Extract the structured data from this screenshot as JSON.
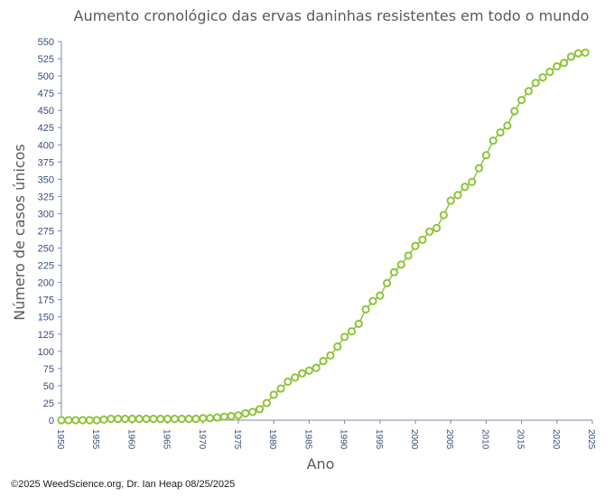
{
  "colors": {
    "series": "#8fc43b",
    "axis": "#7f8aa8",
    "tick_text": "#3a4f7a",
    "title_text": "#595959"
  },
  "credit": "©2025 WeedScience.org, Dr. Ian Heap 08/25/2025",
  "chart_data": {
    "type": "line",
    "title": "Aumento cronológico das ervas daninhas resistentes em todo o mundo",
    "xlabel": "Ano",
    "ylabel": "Número de casos únicos",
    "xlim": [
      1950,
      2025
    ],
    "ylim": [
      0,
      550
    ],
    "xticks": [
      "1950",
      "1955",
      "1960",
      "1965",
      "1970",
      "1975",
      "1980",
      "1985",
      "1990",
      "1995",
      "2000",
      "2005",
      "2010",
      "2015",
      "2020",
      "2025"
    ],
    "yticks": [
      "0",
      "25",
      "50",
      "75",
      "100",
      "125",
      "150",
      "175",
      "200",
      "225",
      "250",
      "275",
      "300",
      "325",
      "350",
      "375",
      "400",
      "425",
      "450",
      "475",
      "500",
      "525",
      "550"
    ],
    "grid": false,
    "legend": "none",
    "series": [
      {
        "x": [
          1950,
          1951,
          1952,
          1953,
          1954,
          1955,
          1956,
          1957,
          1958,
          1959,
          1960,
          1961,
          1962,
          1963,
          1964,
          1965,
          1966,
          1967,
          1968,
          1969,
          1970,
          1971,
          1972,
          1973,
          1974,
          1975,
          1976,
          1977,
          1978,
          1979,
          1980,
          1981,
          1982,
          1983,
          1984,
          1985,
          1986,
          1987,
          1988,
          1989,
          1990,
          1991,
          1992,
          1993,
          1994,
          1995,
          1996,
          1997,
          1998,
          1999,
          2000,
          2001,
          2002,
          2003,
          2004,
          2005,
          2006,
          2007,
          2008,
          2009,
          2010,
          2011,
          2012,
          2013,
          2014,
          2015,
          2016,
          2017,
          2018,
          2019,
          2020,
          2021,
          2022,
          2023,
          2024
        ],
        "y": [
          0,
          0,
          0,
          0,
          0,
          0,
          1,
          2,
          2,
          2,
          2,
          2,
          2,
          2,
          2,
          2,
          2,
          2,
          2,
          2,
          3,
          3,
          4,
          5,
          6,
          7,
          10,
          12,
          16,
          25,
          37,
          46,
          56,
          62,
          68,
          72,
          76,
          86,
          94,
          107,
          121,
          129,
          140,
          161,
          173,
          181,
          199,
          215,
          226,
          239,
          253,
          262,
          274,
          279,
          298,
          319,
          327,
          339,
          346,
          366,
          385,
          406,
          418,
          428,
          449,
          465,
          478,
          490,
          498,
          506,
          514,
          519,
          528,
          533,
          534
        ]
      }
    ]
  }
}
